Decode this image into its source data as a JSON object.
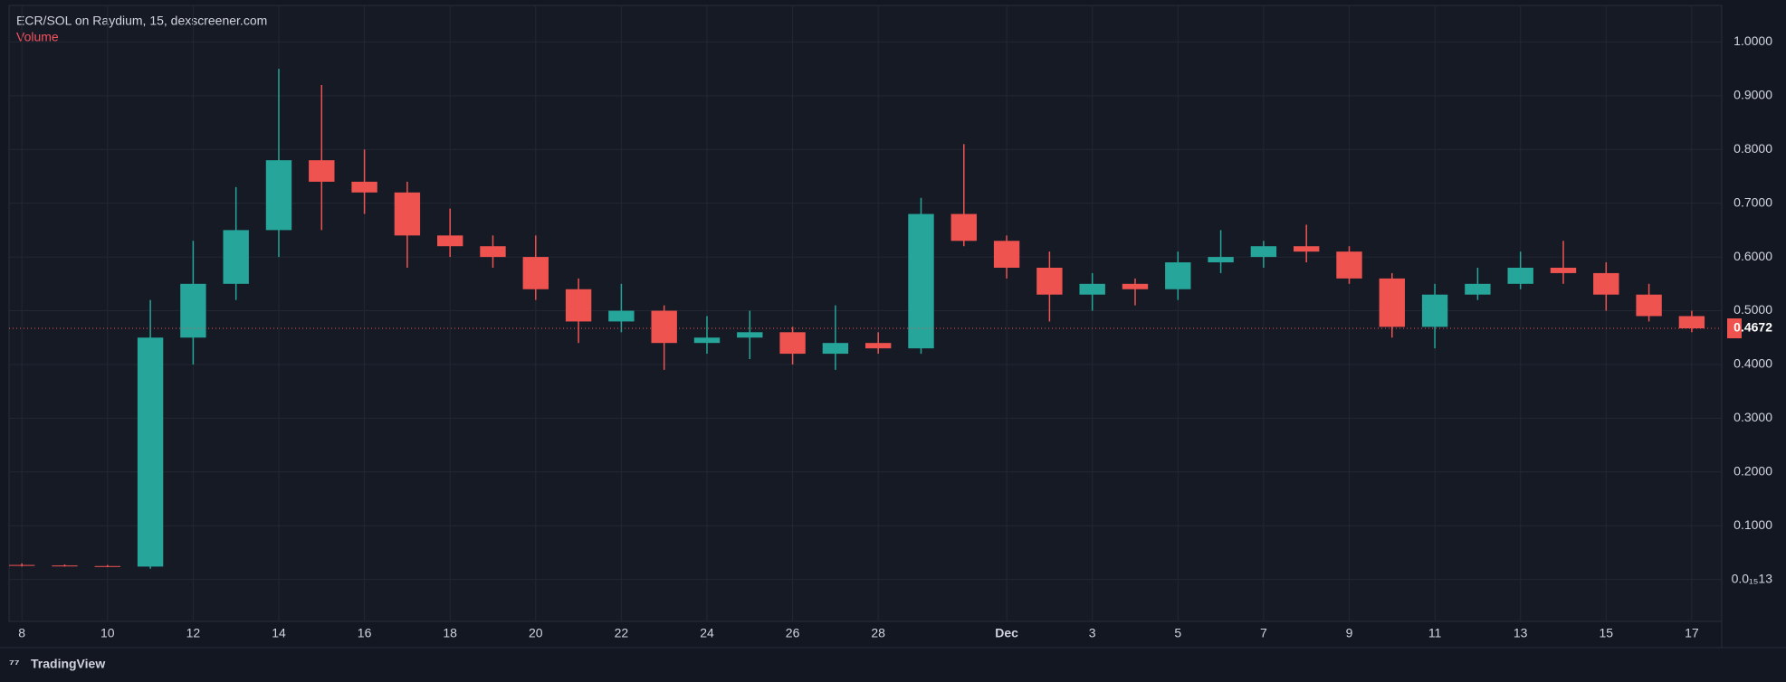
{
  "chart_data": {
    "type": "candlestick",
    "title": "ECR/SOL on Raydium, 15, dexscreener.com",
    "subtitle": "Volume",
    "footer": "TradingView",
    "up_color": "#26a69a",
    "down_color": "#ef5350",
    "x": [
      "Nov 8",
      "Nov 9",
      "Nov 10",
      "Nov 11",
      "Nov 12",
      "Nov 13",
      "Nov 14",
      "Nov 15",
      "Nov 16",
      "Nov 17",
      "Nov 18",
      "Nov 19",
      "Nov 20",
      "Nov 21",
      "Nov 22",
      "Nov 23",
      "Nov 24",
      "Nov 25",
      "Nov 26",
      "Nov 27",
      "Nov 28",
      "Nov 29",
      "Nov 30",
      "Dec 1",
      "Dec 2",
      "Dec 3",
      "Dec 4",
      "Dec 5",
      "Dec 6",
      "Dec 7",
      "Dec 8",
      "Dec 9",
      "Dec 10",
      "Dec 11",
      "Dec 12",
      "Dec 13",
      "Dec 14",
      "Dec 15",
      "Dec 16",
      "Dec 17"
    ],
    "open": [
      0.027,
      0.026,
      0.025,
      0.024,
      0.45,
      0.55,
      0.65,
      0.78,
      0.74,
      0.72,
      0.64,
      0.62,
      0.6,
      0.54,
      0.48,
      0.5,
      0.44,
      0.45,
      0.46,
      0.42,
      0.44,
      0.43,
      0.68,
      0.63,
      0.58,
      0.53,
      0.55,
      0.54,
      0.59,
      0.6,
      0.62,
      0.61,
      0.56,
      0.47,
      0.53,
      0.55,
      0.58,
      0.57,
      0.53,
      0.49
    ],
    "high": [
      0.03,
      0.028,
      0.027,
      0.52,
      0.63,
      0.73,
      0.95,
      0.92,
      0.8,
      0.74,
      0.69,
      0.64,
      0.64,
      0.56,
      0.55,
      0.51,
      0.49,
      0.5,
      0.47,
      0.51,
      0.46,
      0.71,
      0.81,
      0.64,
      0.61,
      0.57,
      0.56,
      0.61,
      0.65,
      0.63,
      0.66,
      0.62,
      0.57,
      0.55,
      0.58,
      0.61,
      0.63,
      0.59,
      0.55,
      0.5
    ],
    "low": [
      0.024,
      0.024,
      0.023,
      0.02,
      0.4,
      0.52,
      0.6,
      0.65,
      0.68,
      0.58,
      0.6,
      0.58,
      0.52,
      0.44,
      0.46,
      0.39,
      0.42,
      0.41,
      0.4,
      0.39,
      0.42,
      0.42,
      0.62,
      0.56,
      0.48,
      0.5,
      0.51,
      0.52,
      0.57,
      0.58,
      0.59,
      0.55,
      0.45,
      0.43,
      0.52,
      0.54,
      0.55,
      0.5,
      0.48,
      0.46
    ],
    "close": [
      0.026,
      0.025,
      0.024,
      0.45,
      0.55,
      0.65,
      0.78,
      0.74,
      0.72,
      0.64,
      0.62,
      0.6,
      0.54,
      0.48,
      0.5,
      0.44,
      0.45,
      0.46,
      0.42,
      0.44,
      0.43,
      0.68,
      0.63,
      0.58,
      0.53,
      0.55,
      0.54,
      0.59,
      0.6,
      0.62,
      0.61,
      0.56,
      0.47,
      0.53,
      0.55,
      0.58,
      0.57,
      0.53,
      0.49,
      0.4672
    ],
    "last_price": 0.4672,
    "ylim": [
      -0.078,
      1.068
    ],
    "yticks": [
      {
        "value": 0,
        "label": "0.0₁₅13"
      },
      {
        "value": 0.1,
        "label": "0.1000"
      },
      {
        "value": 0.2,
        "label": "0.2000"
      },
      {
        "value": 0.3,
        "label": "0.3000"
      },
      {
        "value": 0.4,
        "label": "0.4000"
      },
      {
        "value": 0.5,
        "label": "0.5000"
      },
      {
        "value": 0.6,
        "label": "0.6000"
      },
      {
        "value": 0.7,
        "label": "0.7000"
      },
      {
        "value": 0.8,
        "label": "0.8000"
      },
      {
        "value": 0.9,
        "label": "0.9000"
      },
      {
        "value": 1,
        "label": "1.0000"
      }
    ],
    "xticks": [
      {
        "value": "Nov 8",
        "label": "8"
      },
      {
        "value": "Nov 10",
        "label": "10"
      },
      {
        "value": "Nov 12",
        "label": "12"
      },
      {
        "value": "Nov 14",
        "label": "14"
      },
      {
        "value": "Nov 16",
        "label": "16"
      },
      {
        "value": "Nov 18",
        "label": "18"
      },
      {
        "value": "Nov 20",
        "label": "20"
      },
      {
        "value": "Nov 22",
        "label": "22"
      },
      {
        "value": "Nov 24",
        "label": "24"
      },
      {
        "value": "Nov 26",
        "label": "26"
      },
      {
        "value": "Nov 28",
        "label": "28"
      },
      {
        "value": "Dec 1",
        "label": "Dec"
      },
      {
        "value": "Dec 3",
        "label": "3"
      },
      {
        "value": "Dec 5",
        "label": "5"
      },
      {
        "value": "Dec 7",
        "label": "7"
      },
      {
        "value": "Dec 9",
        "label": "9"
      },
      {
        "value": "Dec 11",
        "label": "11"
      },
      {
        "value": "Dec 13",
        "label": "13"
      },
      {
        "value": "Dec 15",
        "label": "15"
      },
      {
        "value": "Dec 17",
        "label": "17"
      }
    ],
    "grid": true
  }
}
